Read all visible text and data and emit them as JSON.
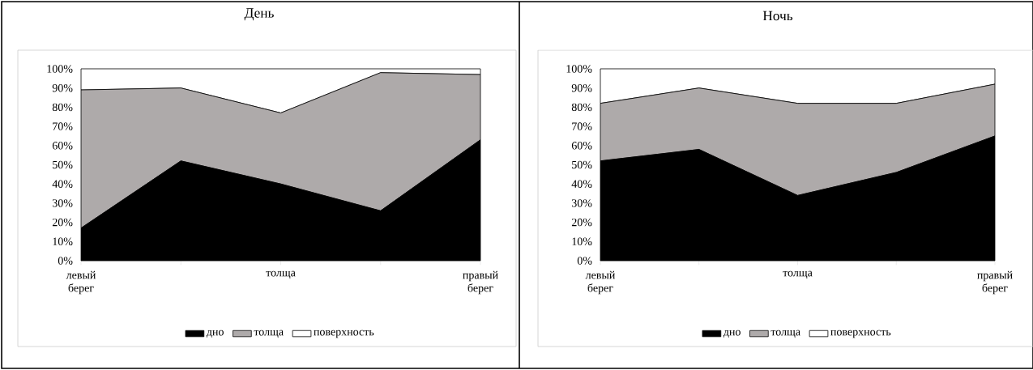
{
  "chart_data": [
    {
      "type": "area",
      "title": "День",
      "stacked": true,
      "legend": "bottom",
      "grid": false,
      "categories": [
        "левый берег",
        null,
        "толща",
        null,
        "правый берег"
      ],
      "ylim": [
        0,
        100
      ],
      "yticks": [
        {
          "value": 0,
          "label": "0%"
        },
        {
          "value": 10,
          "label": "10%"
        },
        {
          "value": 20,
          "label": "20%"
        },
        {
          "value": 30,
          "label": "30%"
        },
        {
          "value": 40,
          "label": "40%"
        },
        {
          "value": 50,
          "label": "50%"
        },
        {
          "value": 60,
          "label": "60%"
        },
        {
          "value": 70,
          "label": "70%"
        },
        {
          "value": 80,
          "label": "80%"
        },
        {
          "value": 90,
          "label": "90%"
        },
        {
          "value": 100,
          "label": "100%"
        }
      ],
      "series": [
        {
          "name": "дно",
          "color": "#000000",
          "values": [
            17,
            52,
            40,
            26,
            63
          ]
        },
        {
          "name": "толща",
          "color": "#aeaaaa",
          "values": [
            72,
            38,
            37,
            72,
            34
          ]
        },
        {
          "name": "поверхность",
          "color": "#ffffff",
          "values": [
            11,
            10,
            23,
            2,
            3
          ]
        }
      ]
    },
    {
      "type": "area",
      "title": "Ночь",
      "stacked": true,
      "legend": "bottom",
      "grid": false,
      "categories": [
        "левый берег",
        null,
        "толща",
        null,
        "правый берег"
      ],
      "ylim": [
        0,
        100
      ],
      "yticks": [
        {
          "value": 0,
          "label": "0%"
        },
        {
          "value": 10,
          "label": "10%"
        },
        {
          "value": 20,
          "label": "20%"
        },
        {
          "value": 30,
          "label": "30%"
        },
        {
          "value": 40,
          "label": "40%"
        },
        {
          "value": 50,
          "label": "50%"
        },
        {
          "value": 60,
          "label": "60%"
        },
        {
          "value": 70,
          "label": "70%"
        },
        {
          "value": 80,
          "label": "80%"
        },
        {
          "value": 90,
          "label": "90%"
        },
        {
          "value": 100,
          "label": "100%"
        }
      ],
      "series": [
        {
          "name": "дно",
          "color": "#000000",
          "values": [
            52,
            58,
            34,
            46,
            65
          ]
        },
        {
          "name": "толща",
          "color": "#aeaaaa",
          "values": [
            30,
            32,
            48,
            36,
            27
          ]
        },
        {
          "name": "поверхность",
          "color": "#ffffff",
          "values": [
            18,
            10,
            18,
            18,
            8
          ]
        }
      ]
    }
  ]
}
